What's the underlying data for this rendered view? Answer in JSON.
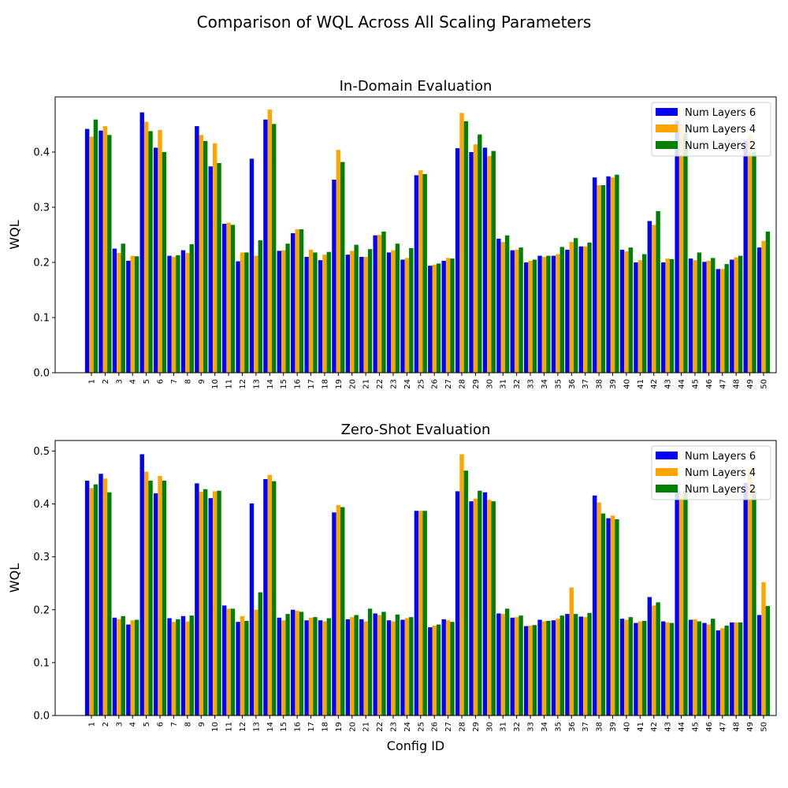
{
  "figure": {
    "suptitle": "Comparison of WQL Across All Scaling Parameters"
  },
  "colors": {
    "Num Layers 6": "#0000ff",
    "Num Layers 4": "#ffa500",
    "Num Layers 2": "#008000"
  },
  "chart_data": [
    {
      "type": "bar",
      "title": "In-Domain Evaluation",
      "xlabel": "Config ID",
      "ylabel": "WQL",
      "ylim": [
        0,
        0.5
      ],
      "yticks": [
        0.0,
        0.1,
        0.2,
        0.3,
        0.4
      ],
      "ytick_labels": [
        "0.0",
        "0.1",
        "0.2",
        "0.3",
        "0.4"
      ],
      "legend_position": "top-right",
      "grid": false,
      "categories": [
        "1",
        "2",
        "3",
        "4",
        "5",
        "6",
        "7",
        "8",
        "9",
        "10",
        "11",
        "12",
        "13",
        "14",
        "15",
        "16",
        "17",
        "18",
        "19",
        "20",
        "21",
        "22",
        "23",
        "24",
        "25",
        "26",
        "27",
        "28",
        "29",
        "30",
        "31",
        "32",
        "33",
        "34",
        "35",
        "36",
        "37",
        "38",
        "39",
        "40",
        "41",
        "42",
        "43",
        "44",
        "45",
        "46",
        "47",
        "48",
        "49",
        "50"
      ],
      "series": [
        {
          "name": "Num Layers 6",
          "values": [
            0.442,
            0.439,
            0.225,
            0.203,
            0.472,
            0.408,
            0.212,
            0.222,
            0.447,
            0.374,
            0.27,
            0.202,
            0.388,
            0.459,
            0.221,
            0.253,
            0.21,
            0.204,
            0.35,
            0.214,
            0.21,
            0.249,
            0.218,
            0.205,
            0.358,
            0.194,
            0.203,
            0.407,
            0.4,
            0.408,
            0.243,
            0.222,
            0.2,
            0.212,
            0.212,
            0.223,
            0.229,
            0.354,
            0.356,
            0.223,
            0.2,
            0.275,
            0.2,
            0.457,
            0.207,
            0.201,
            0.188,
            0.205,
            0.421,
            0.227
          ]
        },
        {
          "name": "Num Layers 4",
          "values": [
            0.428,
            0.447,
            0.217,
            0.212,
            0.455,
            0.44,
            0.21,
            0.217,
            0.431,
            0.416,
            0.272,
            0.218,
            0.212,
            0.477,
            0.222,
            0.26,
            0.223,
            0.214,
            0.404,
            0.221,
            0.21,
            0.25,
            0.222,
            0.208,
            0.367,
            0.196,
            0.208,
            0.471,
            0.414,
            0.393,
            0.237,
            0.223,
            0.203,
            0.21,
            0.215,
            0.237,
            0.229,
            0.34,
            0.354,
            0.22,
            0.204,
            0.268,
            0.207,
            0.452,
            0.204,
            0.203,
            0.188,
            0.209,
            0.43,
            0.239
          ]
        },
        {
          "name": "Num Layers 2",
          "values": [
            0.459,
            0.431,
            0.234,
            0.211,
            0.438,
            0.4,
            0.213,
            0.233,
            0.42,
            0.38,
            0.268,
            0.218,
            0.24,
            0.451,
            0.234,
            0.26,
            0.218,
            0.219,
            0.382,
            0.232,
            0.224,
            0.256,
            0.234,
            0.226,
            0.36,
            0.198,
            0.207,
            0.456,
            0.432,
            0.402,
            0.249,
            0.227,
            0.205,
            0.212,
            0.228,
            0.244,
            0.236,
            0.34,
            0.359,
            0.227,
            0.215,
            0.293,
            0.206,
            0.434,
            0.218,
            0.208,
            0.197,
            0.212,
            0.4,
            0.256
          ]
        }
      ]
    },
    {
      "type": "bar",
      "title": "Zero-Shot Evaluation",
      "xlabel": "Config ID",
      "ylabel": "WQL",
      "ylim": [
        0,
        0.52
      ],
      "yticks": [
        0.0,
        0.1,
        0.2,
        0.3,
        0.4,
        0.5
      ],
      "ytick_labels": [
        "0.0",
        "0.1",
        "0.2",
        "0.3",
        "0.4",
        "0.5"
      ],
      "legend_position": "top-right",
      "grid": false,
      "categories": [
        "1",
        "2",
        "3",
        "4",
        "5",
        "6",
        "7",
        "8",
        "9",
        "10",
        "11",
        "12",
        "13",
        "14",
        "15",
        "16",
        "17",
        "18",
        "19",
        "20",
        "21",
        "22",
        "23",
        "24",
        "25",
        "26",
        "27",
        "28",
        "29",
        "30",
        "31",
        "32",
        "33",
        "34",
        "35",
        "36",
        "37",
        "38",
        "39",
        "40",
        "41",
        "42",
        "43",
        "44",
        "45",
        "46",
        "47",
        "48",
        "49",
        "50"
      ],
      "series": [
        {
          "name": "Num Layers 6",
          "values": [
            0.444,
            0.457,
            0.185,
            0.172,
            0.494,
            0.42,
            0.184,
            0.188,
            0.439,
            0.411,
            0.208,
            0.177,
            0.401,
            0.447,
            0.185,
            0.2,
            0.18,
            0.18,
            0.384,
            0.182,
            0.182,
            0.193,
            0.18,
            0.181,
            0.387,
            0.167,
            0.182,
            0.424,
            0.405,
            0.422,
            0.193,
            0.185,
            0.169,
            0.181,
            0.18,
            0.192,
            0.187,
            0.416,
            0.373,
            0.183,
            0.175,
            0.224,
            0.178,
            0.428,
            0.181,
            0.175,
            0.161,
            0.176,
            0.44,
            0.19
          ]
        },
        {
          "name": "Num Layers 4",
          "values": [
            0.43,
            0.448,
            0.182,
            0.18,
            0.461,
            0.453,
            0.177,
            0.178,
            0.423,
            0.424,
            0.202,
            0.188,
            0.2,
            0.455,
            0.18,
            0.198,
            0.185,
            0.178,
            0.398,
            0.186,
            0.178,
            0.19,
            0.178,
            0.184,
            0.387,
            0.17,
            0.18,
            0.494,
            0.41,
            0.408,
            0.192,
            0.186,
            0.17,
            0.178,
            0.183,
            0.242,
            0.186,
            0.403,
            0.378,
            0.181,
            0.178,
            0.208,
            0.176,
            0.42,
            0.182,
            0.172,
            0.165,
            0.176,
            0.467,
            0.252
          ]
        },
        {
          "name": "Num Layers 2",
          "values": [
            0.437,
            0.422,
            0.188,
            0.181,
            0.444,
            0.444,
            0.182,
            0.189,
            0.428,
            0.425,
            0.202,
            0.179,
            0.233,
            0.443,
            0.192,
            0.196,
            0.186,
            0.184,
            0.394,
            0.19,
            0.202,
            0.196,
            0.191,
            0.186,
            0.387,
            0.172,
            0.177,
            0.463,
            0.425,
            0.405,
            0.202,
            0.189,
            0.171,
            0.179,
            0.189,
            0.192,
            0.194,
            0.382,
            0.371,
            0.186,
            0.179,
            0.214,
            0.175,
            0.425,
            0.178,
            0.183,
            0.17,
            0.176,
            0.427,
            0.207
          ]
        }
      ]
    }
  ]
}
